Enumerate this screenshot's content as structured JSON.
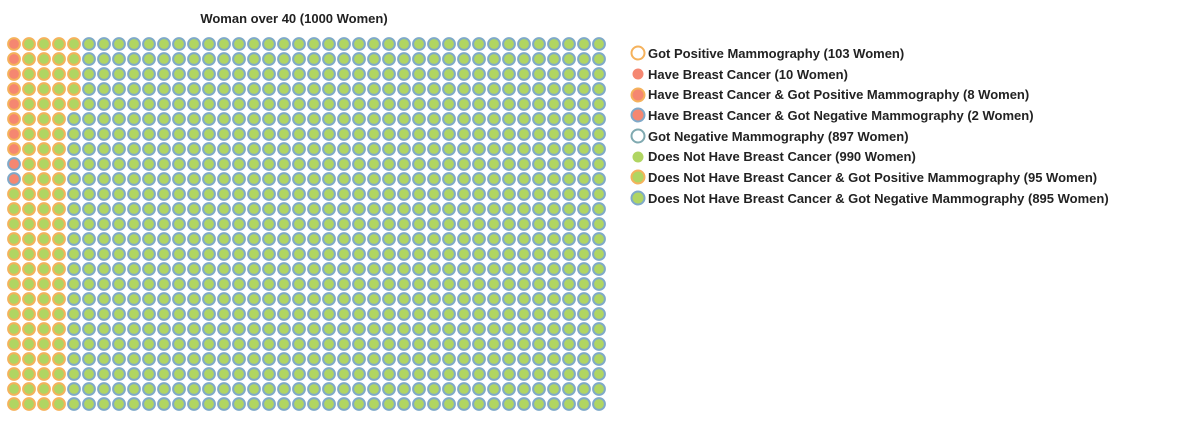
{
  "chart_data": {
    "type": "waffle",
    "title": "Woman over 40 (1000 Women)",
    "rows": 25,
    "columns": 40,
    "colors": {
      "cancer_fill": "#f58771",
      "no_cancer_fill": "#b0d562",
      "positive_stroke": "#f5b25c",
      "negative_stroke": "#7fa9c9",
      "negative_outline_only": "#7fa9b0"
    },
    "groups": [
      {
        "key": "cancer_positive",
        "count": 8
      },
      {
        "key": "cancer_negative",
        "count": 2
      },
      {
        "key": "no_cancer_positive",
        "count": 95
      },
      {
        "key": "no_cancer_negative",
        "count": 895
      }
    ],
    "legend": [
      {
        "label": "Got Positive Mammography (103 Women)",
        "fill": "none",
        "stroke": "positive_stroke"
      },
      {
        "label": "Have Breast Cancer (10 Women)",
        "fill": "cancer_fill",
        "stroke": "none"
      },
      {
        "label": "Have Breast Cancer & Got Positive Mammography (8 Women)",
        "fill": "cancer_fill",
        "stroke": "positive_stroke"
      },
      {
        "label": "Have Breast Cancer & Got Negative Mammography (2 Women)",
        "fill": "cancer_fill",
        "stroke": "negative_stroke"
      },
      {
        "label": "Got Negative Mammography (897 Women)",
        "fill": "none",
        "stroke": "negative_outline_only"
      },
      {
        "label": "Does Not Have Breast Cancer (990 Women)",
        "fill": "no_cancer_fill",
        "stroke": "none"
      },
      {
        "label": "Does Not Have Breast Cancer & Got Positive Mammography (95 Women)",
        "fill": "no_cancer_fill",
        "stroke": "positive_stroke"
      },
      {
        "label": "Does Not Have Breast Cancer & Got Negative Mammography (895 Women)",
        "fill": "no_cancer_fill",
        "stroke": "negative_stroke"
      }
    ]
  }
}
